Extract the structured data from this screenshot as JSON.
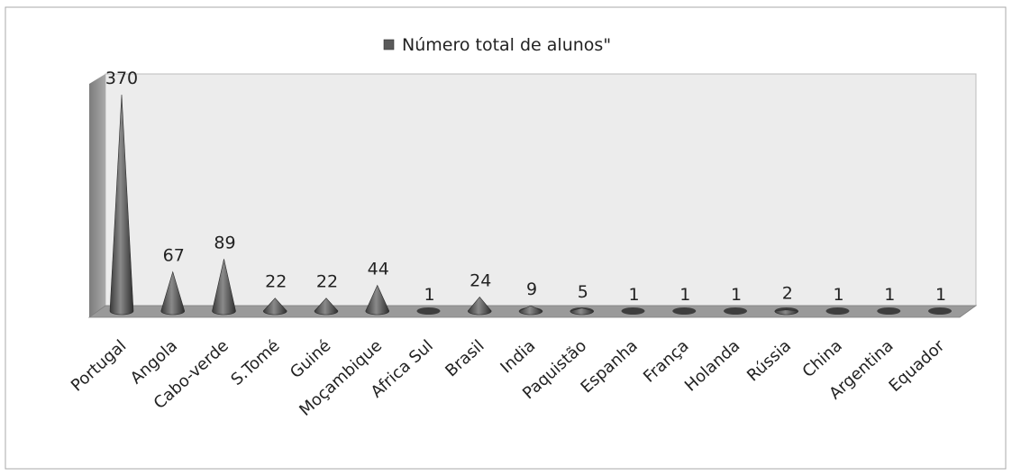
{
  "chart_data": {
    "type": "bar",
    "subtype": "3d-cone",
    "title": "",
    "xlabel": "",
    "ylabel": "",
    "legend": {
      "label": "Número total de alunos\"",
      "placement": "top"
    },
    "series": [
      {
        "name": "Número total de alunos\"",
        "values": [
          370,
          67,
          89,
          22,
          22,
          44,
          1,
          24,
          9,
          5,
          1,
          1,
          1,
          2,
          1,
          1,
          1
        ]
      }
    ],
    "categories": [
      "Portugal",
      "Angola",
      "Cabo-verde",
      "S.Tomé",
      "Guiné",
      "Moçambique",
      "Africa Sul",
      "Brasil",
      "India",
      "Paquistão",
      "Espanha",
      "França",
      "Holanda",
      "Rússia",
      "China",
      "Argentina",
      "Equador"
    ],
    "data_labels": [
      "370",
      "67",
      "89",
      "22",
      "22",
      "44",
      "1",
      "24",
      "9",
      "5",
      "1",
      "1",
      "1",
      "2",
      "1",
      "1",
      "1"
    ],
    "ylim": [
      0,
      370
    ],
    "grid": false,
    "colors": {
      "cone": "#5a5a5a",
      "wall": "#ececec",
      "wall_side": "#8f8f8f",
      "floor": "#9a9a9a"
    }
  }
}
